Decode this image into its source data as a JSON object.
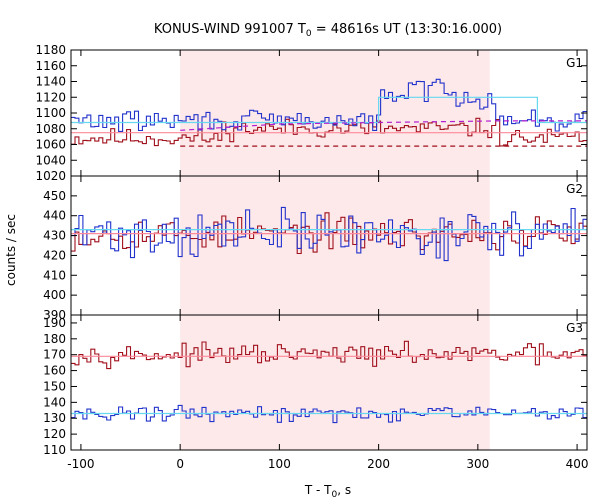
{
  "chart_data": {
    "type": "line",
    "title": {
      "prefix": "KONUS-WIND 991007 T",
      "sub": "0",
      "suffix": " = 48616s UT (13:30:16.000)"
    },
    "xlabel": {
      "prefix": "T - T",
      "sub": "0",
      "suffix": ", s"
    },
    "ylabel": "counts / sec",
    "xlim": [
      -110,
      410
    ],
    "xticks": [
      -100,
      0,
      100,
      200,
      300,
      400
    ],
    "xtick_labels": [
      "-100",
      "0",
      "100",
      "200",
      "300",
      "400"
    ],
    "highlight_interval": [
      0,
      312
    ],
    "colors": {
      "highlight": "#fde8ea",
      "red_series": "#a0101c",
      "blue_series": "#2233cc",
      "red_fit": "#ff8a9a",
      "blue_fit": "#66d8f0",
      "magenta_fit": "#b21fd0"
    },
    "bin_width": 4,
    "panels": [
      {
        "label": "G1",
        "ylim": [
          1020,
          1180
        ],
        "yticks": [
          1020,
          1040,
          1060,
          1080,
          1100,
          1120,
          1140,
          1160,
          1180
        ],
        "series": [
          {
            "color": "red",
            "baseline": 1068,
            "noise": 10,
            "seed": 11,
            "bumps": [
              {
                "x0": 40,
                "x1": 320,
                "amp": 12
              }
            ]
          },
          {
            "color": "blue",
            "baseline": 1090,
            "noise": 11,
            "seed": 29,
            "bumps": [
              {
                "x0": 200,
                "x1": 315,
                "amp": 30
              },
              {
                "x0": 230,
                "x1": 275,
                "amp": 12
              }
            ]
          }
        ],
        "fits": [
          {
            "color": "red_fit",
            "dash": false,
            "points": [
              [
                -110,
                1075
              ],
              [
                410,
                1075
              ]
            ]
          },
          {
            "color": "blue_fit",
            "dash": false,
            "points": [
              [
                -110,
                1088
              ],
              [
                200,
                1088
              ],
              [
                200,
                1120
              ],
              [
                360,
                1120
              ],
              [
                360,
                1088
              ],
              [
                410,
                1088
              ]
            ]
          },
          {
            "color": "magenta_fit",
            "dash": true,
            "points": [
              [
                0,
                1078
              ],
              [
                100,
                1086
              ],
              [
                200,
                1088
              ],
              [
                320,
                1090
              ],
              [
                410,
                1090
              ]
            ]
          },
          {
            "color": "red_series",
            "dash": true,
            "points": [
              [
                0,
                1058
              ],
              [
                410,
                1058
              ]
            ]
          }
        ]
      },
      {
        "label": "G2",
        "ylim": [
          390,
          460
        ],
        "yticks": [
          390,
          400,
          410,
          420,
          430,
          440,
          450
        ],
        "series": [
          {
            "color": "red",
            "baseline": 431,
            "noise": 7,
            "seed": 53,
            "bumps": []
          },
          {
            "color": "blue",
            "baseline": 431,
            "noise": 10,
            "seed": 71,
            "bumps": []
          }
        ],
        "fits": [
          {
            "color": "blue_fit",
            "dash": false,
            "points": [
              [
                -110,
                433
              ],
              [
                410,
                433
              ]
            ]
          },
          {
            "color": "red_fit",
            "dash": false,
            "points": [
              [
                -110,
                431
              ],
              [
                410,
                431
              ]
            ]
          }
        ]
      },
      {
        "label": "G3",
        "ylim": [
          110,
          195
        ],
        "yticks": [
          110,
          120,
          130,
          140,
          150,
          160,
          170,
          180,
          190
        ],
        "series": [
          {
            "color": "red",
            "baseline": 170,
            "noise": 5,
            "seed": 97,
            "bumps": []
          },
          {
            "color": "blue",
            "baseline": 133,
            "noise": 4,
            "seed": 131,
            "bumps": []
          }
        ],
        "fits": [
          {
            "color": "red_fit",
            "dash": false,
            "points": [
              [
                -110,
                169
              ],
              [
                410,
                169
              ]
            ]
          },
          {
            "color": "blue_fit",
            "dash": false,
            "points": [
              [
                -110,
                133
              ],
              [
                410,
                133
              ]
            ]
          }
        ]
      }
    ]
  }
}
